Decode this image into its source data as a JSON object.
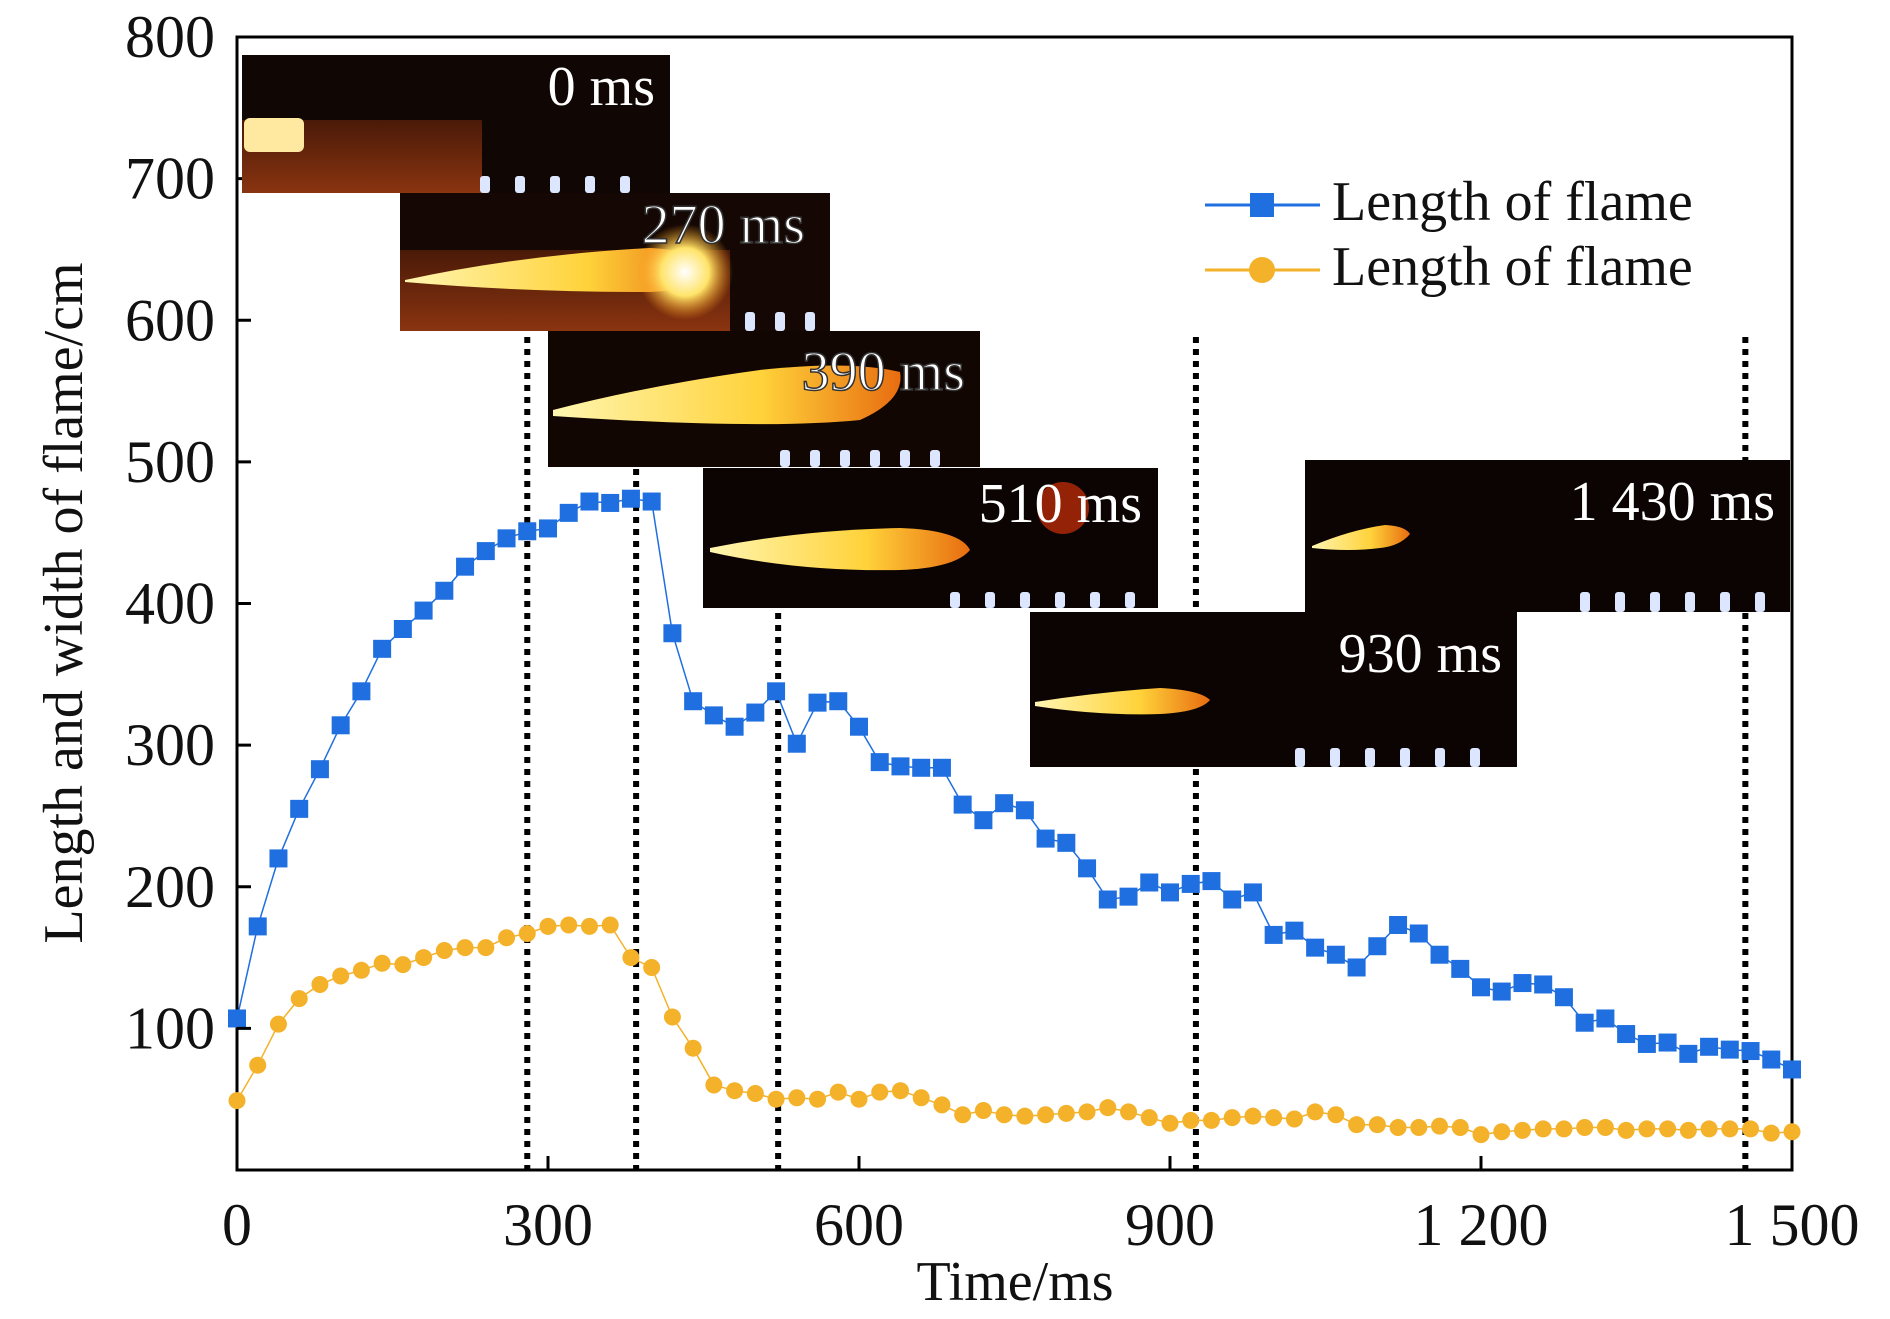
{
  "chart_data": {
    "type": "line",
    "title": "",
    "xlabel": "Time/ms",
    "ylabel": "Length and width of flame/cm",
    "xlim": [
      0,
      1500
    ],
    "ylim": [
      0,
      800
    ],
    "x_ticks": [
      {
        "value": 0,
        "label": "0"
      },
      {
        "value": 300,
        "label": "300"
      },
      {
        "value": 600,
        "label": "600"
      },
      {
        "value": 900,
        "label": "900"
      },
      {
        "value": 1200,
        "label": "1 200"
      },
      {
        "value": 1500,
        "label": "1 500"
      }
    ],
    "y_ticks": [
      {
        "value": 100,
        "label": "100"
      },
      {
        "value": 200,
        "label": "200"
      },
      {
        "value": 300,
        "label": "300"
      },
      {
        "value": 400,
        "label": "400"
      },
      {
        "value": 500,
        "label": "500"
      },
      {
        "value": 600,
        "label": "600"
      },
      {
        "value": 700,
        "label": "700"
      },
      {
        "value": 800,
        "label": "800"
      }
    ],
    "grid": false,
    "legend": "top-right",
    "series": [
      {
        "name": "Length of flame",
        "color": "#1f6fe0",
        "marker": "square",
        "x": [
          0,
          20,
          40,
          60,
          80,
          100,
          120,
          140,
          160,
          180,
          200,
          220,
          240,
          260,
          280,
          300,
          320,
          340,
          360,
          380,
          400,
          420,
          440,
          460,
          480,
          500,
          520,
          540,
          560,
          580,
          600,
          620,
          640,
          660,
          680,
          700,
          720,
          740,
          760,
          780,
          800,
          820,
          840,
          860,
          880,
          900,
          920,
          940,
          960,
          980,
          1000,
          1020,
          1040,
          1060,
          1080,
          1100,
          1120,
          1140,
          1160,
          1180,
          1200,
          1220,
          1240,
          1260,
          1280,
          1300,
          1320,
          1340,
          1360,
          1380,
          1400,
          1420,
          1440,
          1460,
          1480,
          1500
        ],
        "y": [
          107,
          172,
          220,
          255,
          283,
          314,
          338,
          368,
          382,
          395,
          409,
          426,
          437,
          446,
          451,
          453,
          464,
          472,
          471,
          474,
          472,
          379,
          331,
          321,
          313,
          323,
          338,
          301,
          330,
          331,
          313,
          288,
          285,
          284,
          284,
          258,
          247,
          259,
          254,
          234,
          231,
          213,
          191,
          193,
          203,
          196,
          202,
          204,
          191,
          196,
          166,
          169,
          157,
          152,
          143,
          158,
          173,
          167,
          152,
          142,
          129,
          126,
          132,
          131,
          122,
          104,
          107,
          96,
          89,
          90,
          82,
          87,
          85,
          84,
          78,
          71
        ]
      },
      {
        "name": "Length of flame",
        "color": "#f4b12a",
        "marker": "circle",
        "x": [
          0,
          20,
          40,
          60,
          80,
          100,
          120,
          140,
          160,
          180,
          200,
          220,
          240,
          260,
          280,
          300,
          320,
          340,
          360,
          380,
          400,
          420,
          440,
          460,
          480,
          500,
          520,
          540,
          560,
          580,
          600,
          620,
          640,
          660,
          680,
          700,
          720,
          740,
          760,
          780,
          800,
          820,
          840,
          860,
          880,
          900,
          920,
          940,
          960,
          980,
          1000,
          1020,
          1040,
          1060,
          1080,
          1100,
          1120,
          1140,
          1160,
          1180,
          1200,
          1220,
          1240,
          1260,
          1280,
          1300,
          1320,
          1340,
          1360,
          1380,
          1400,
          1420,
          1440,
          1460,
          1480,
          1500
        ],
        "y": [
          49,
          74,
          103,
          121,
          131,
          137,
          141,
          146,
          145,
          150,
          155,
          157,
          157,
          164,
          167,
          172,
          173,
          172,
          173,
          150,
          143,
          108,
          86,
          60,
          56,
          54,
          50,
          51,
          50,
          55,
          50,
          55,
          56,
          51,
          46,
          39,
          42,
          39,
          38,
          39,
          40,
          41,
          44,
          41,
          37,
          33,
          35,
          35,
          37,
          38,
          37,
          36,
          41,
          39,
          32,
          32,
          30,
          30,
          31,
          30,
          25,
          27,
          28,
          29,
          29,
          30,
          30,
          28,
          29,
          29,
          28,
          29,
          29,
          29,
          26,
          27
        ]
      }
    ],
    "reference_lines": [
      {
        "x": 280,
        "style": "dotted"
      },
      {
        "x": 385,
        "style": "dotted"
      },
      {
        "x": 522,
        "style": "dotted"
      },
      {
        "x": 925,
        "style": "dotted"
      },
      {
        "x": 1455,
        "style": "dotted"
      }
    ],
    "annotations": [
      {
        "label": "0 ms"
      },
      {
        "label": "270 ms"
      },
      {
        "label": "390 ms"
      },
      {
        "label": "510 ms"
      },
      {
        "label": "930 ms"
      },
      {
        "label": "1 430 ms"
      }
    ]
  }
}
